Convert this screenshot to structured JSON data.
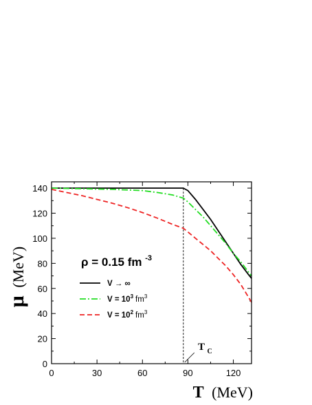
{
  "chart_data": {
    "type": "line",
    "xlabel": {
      "symbol": "T",
      "unit": "(MeV)"
    },
    "ylabel": {
      "symbol": "μ",
      "unit": "(MeV)"
    },
    "xlim": [
      0,
      132
    ],
    "ylim": [
      0,
      145
    ],
    "xticks": [
      0,
      30,
      60,
      90,
      120
    ],
    "yticks": [
      0,
      20,
      40,
      60,
      80,
      100,
      120,
      140
    ],
    "annotation": {
      "main": "ρ = 0.15 fm",
      "exponent": "-3"
    },
    "critical_temperature": {
      "x": 87,
      "label_main": "T",
      "label_sub": "C"
    },
    "legend_placement": "middle-left",
    "series": [
      {
        "name": "V → ∞",
        "legend_main": "V → ∞",
        "legend_exp": "",
        "legend_unit": "",
        "color": "#000000",
        "dash": "",
        "points": [
          [
            0,
            140
          ],
          [
            87,
            140
          ],
          [
            90,
            138
          ],
          [
            95,
            131
          ],
          [
            100,
            123
          ],
          [
            105,
            115
          ],
          [
            110,
            106
          ],
          [
            115,
            97
          ],
          [
            120,
            88
          ],
          [
            125,
            79
          ],
          [
            130,
            71
          ],
          [
            132,
            68
          ]
        ]
      },
      {
        "name": "V = 10^3 fm^3",
        "legend_main": "V = 10",
        "legend_exp": "3",
        "legend_unit": "fm",
        "legend_unit_exp": "3",
        "color": "#22dd22",
        "dash": "9,3,2,3",
        "points": [
          [
            0,
            140
          ],
          [
            20,
            139.5
          ],
          [
            40,
            139
          ],
          [
            60,
            138
          ],
          [
            70,
            136.5
          ],
          [
            80,
            134.5
          ],
          [
            87,
            132
          ],
          [
            90,
            129
          ],
          [
            95,
            123
          ],
          [
            100,
            117
          ],
          [
            105,
            110
          ],
          [
            110,
            103
          ],
          [
            115,
            96
          ],
          [
            120,
            88
          ],
          [
            125,
            81
          ],
          [
            130,
            73
          ],
          [
            132,
            70
          ]
        ]
      },
      {
        "name": "V = 10^2 fm^3",
        "legend_main": "V = 10",
        "legend_exp": "2",
        "legend_unit": "fm",
        "legend_unit_exp": "3",
        "color": "#ee2222",
        "dash": "7,4",
        "points": [
          [
            0,
            139
          ],
          [
            10,
            136.5
          ],
          [
            20,
            134
          ],
          [
            30,
            131
          ],
          [
            40,
            128
          ],
          [
            50,
            124.5
          ],
          [
            60,
            120.5
          ],
          [
            70,
            116
          ],
          [
            80,
            111
          ],
          [
            87,
            108
          ],
          [
            90,
            105
          ],
          [
            95,
            100
          ],
          [
            100,
            95
          ],
          [
            105,
            90
          ],
          [
            110,
            84
          ],
          [
            115,
            78
          ],
          [
            120,
            71
          ],
          [
            125,
            63
          ],
          [
            130,
            53
          ],
          [
            132,
            49
          ]
        ]
      }
    ]
  }
}
